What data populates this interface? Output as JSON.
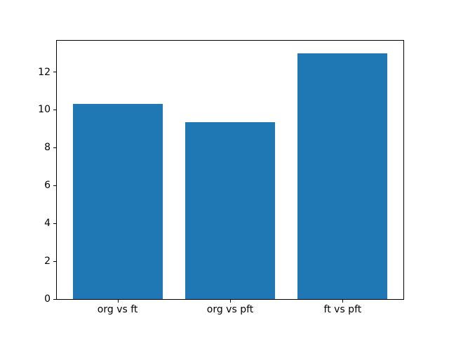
{
  "figure": {
    "background": "#ffffff",
    "title": ""
  },
  "chart_data": {
    "type": "bar",
    "categories": [
      "org vs ft",
      "org vs pft",
      "ft vs pft"
    ],
    "values": [
      10.3,
      9.35,
      13.0
    ],
    "title": "",
    "xlabel": "",
    "ylabel": "",
    "yticks": [
      0,
      2,
      4,
      6,
      8,
      10,
      12
    ],
    "ylim": [
      0,
      13.65
    ],
    "xlim": [
      -0.54,
      2.54
    ],
    "bar_width": 0.8,
    "bar_color": "#1f77b4",
    "axis_color": "#000000",
    "tick_label_color": "#000000",
    "grid": false,
    "legend": null
  }
}
